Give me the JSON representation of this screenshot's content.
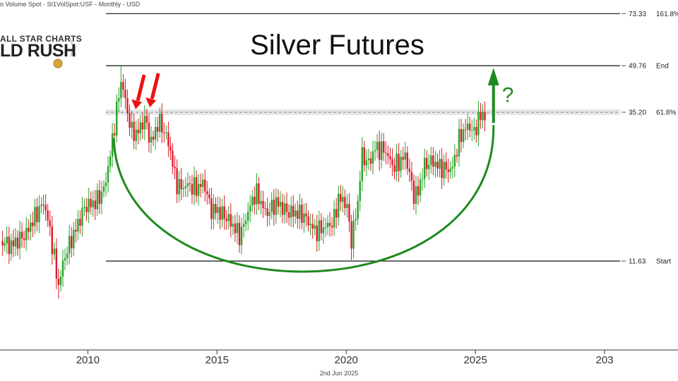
{
  "header": {
    "text": "o Volume Spot - SI1VolSpot:USF - Monthly - USD"
  },
  "logo": {
    "line1": "ALL STAR CHARTS",
    "line2": "LD RUSH"
  },
  "footer": {
    "date": "2nd Jun 2025"
  },
  "colors": {
    "up": "#28a428",
    "down": "#e0192b",
    "arc": "#1e8a1e",
    "arrow_red": "#ee1111",
    "arrow_green": "#1e8a1e"
  },
  "chart_data": {
    "type": "candlestick",
    "title": "Silver Futures",
    "interval": "Monthly",
    "x_ticks": [
      "2010",
      "2015",
      "2020",
      "2025",
      "203"
    ],
    "xlim": [
      2006.6,
      2030.6
    ],
    "ylim": [
      6.0,
      77.0
    ],
    "y_scale": "log",
    "levels": [
      {
        "value": 73.33,
        "value_label": "73.33",
        "label": "161.8%",
        "style": "solid"
      },
      {
        "value": 49.76,
        "value_label": "49.76",
        "label": "End",
        "style": "solid"
      },
      {
        "value": 35.2,
        "value_label": "35.20",
        "label": "61.8%",
        "style": "dashed"
      },
      {
        "value": 11.63,
        "value_label": "11.63",
        "label": "Start",
        "style": "solid"
      }
    ],
    "anchors": [
      [
        2006.7,
        13.5
      ],
      [
        2007.0,
        13.0
      ],
      [
        2007.3,
        13.6
      ],
      [
        2007.6,
        14.2
      ],
      [
        2008.0,
        16.5
      ],
      [
        2008.3,
        18.0
      ],
      [
        2008.6,
        13.5
      ],
      [
        2008.85,
        9.5
      ],
      [
        2009.1,
        12.0
      ],
      [
        2009.5,
        14.5
      ],
      [
        2009.9,
        17.5
      ],
      [
        2010.3,
        18.0
      ],
      [
        2010.65,
        20.0
      ],
      [
        2010.9,
        26.5
      ],
      [
        2011.1,
        35.0
      ],
      [
        2011.3,
        45.0
      ],
      [
        2011.5,
        36.0
      ],
      [
        2011.7,
        30.5
      ],
      [
        2011.9,
        30.0
      ],
      [
        2012.2,
        33.5
      ],
      [
        2012.45,
        28.0
      ],
      [
        2012.75,
        33.0
      ],
      [
        2012.95,
        30.5
      ],
      [
        2013.15,
        27.5
      ],
      [
        2013.4,
        21.0
      ],
      [
        2013.6,
        20.0
      ],
      [
        2013.85,
        20.5
      ],
      [
        2014.2,
        20.0
      ],
      [
        2014.5,
        20.8
      ],
      [
        2014.75,
        17.0
      ],
      [
        2015.0,
        17.0
      ],
      [
        2015.4,
        16.0
      ],
      [
        2015.9,
        14.0
      ],
      [
        2016.5,
        19.5
      ],
      [
        2016.9,
        16.5
      ],
      [
        2017.3,
        18.0
      ],
      [
        2017.7,
        16.8
      ],
      [
        2018.3,
        16.5
      ],
      [
        2018.8,
        14.5
      ],
      [
        2019.2,
        15.0
      ],
      [
        2019.5,
        15.5
      ],
      [
        2019.7,
        18.5
      ],
      [
        2020.0,
        18.0
      ],
      [
        2020.2,
        13.5
      ],
      [
        2020.45,
        17.8
      ],
      [
        2020.6,
        25.5
      ],
      [
        2020.9,
        24.0
      ],
      [
        2021.1,
        27.0
      ],
      [
        2021.5,
        26.5
      ],
      [
        2021.8,
        23.5
      ],
      [
        2022.1,
        24.5
      ],
      [
        2022.3,
        25.5
      ],
      [
        2022.6,
        19.0
      ],
      [
        2022.8,
        19.5
      ],
      [
        2023.0,
        23.5
      ],
      [
        2023.3,
        24.5
      ],
      [
        2023.6,
        23.5
      ],
      [
        2023.9,
        23.0
      ],
      [
        2024.1,
        23.0
      ],
      [
        2024.4,
        29.5
      ],
      [
        2024.75,
        32.0
      ],
      [
        2024.95,
        30.0
      ],
      [
        2025.1,
        33.5
      ],
      [
        2025.42,
        35.0
      ]
    ]
  }
}
